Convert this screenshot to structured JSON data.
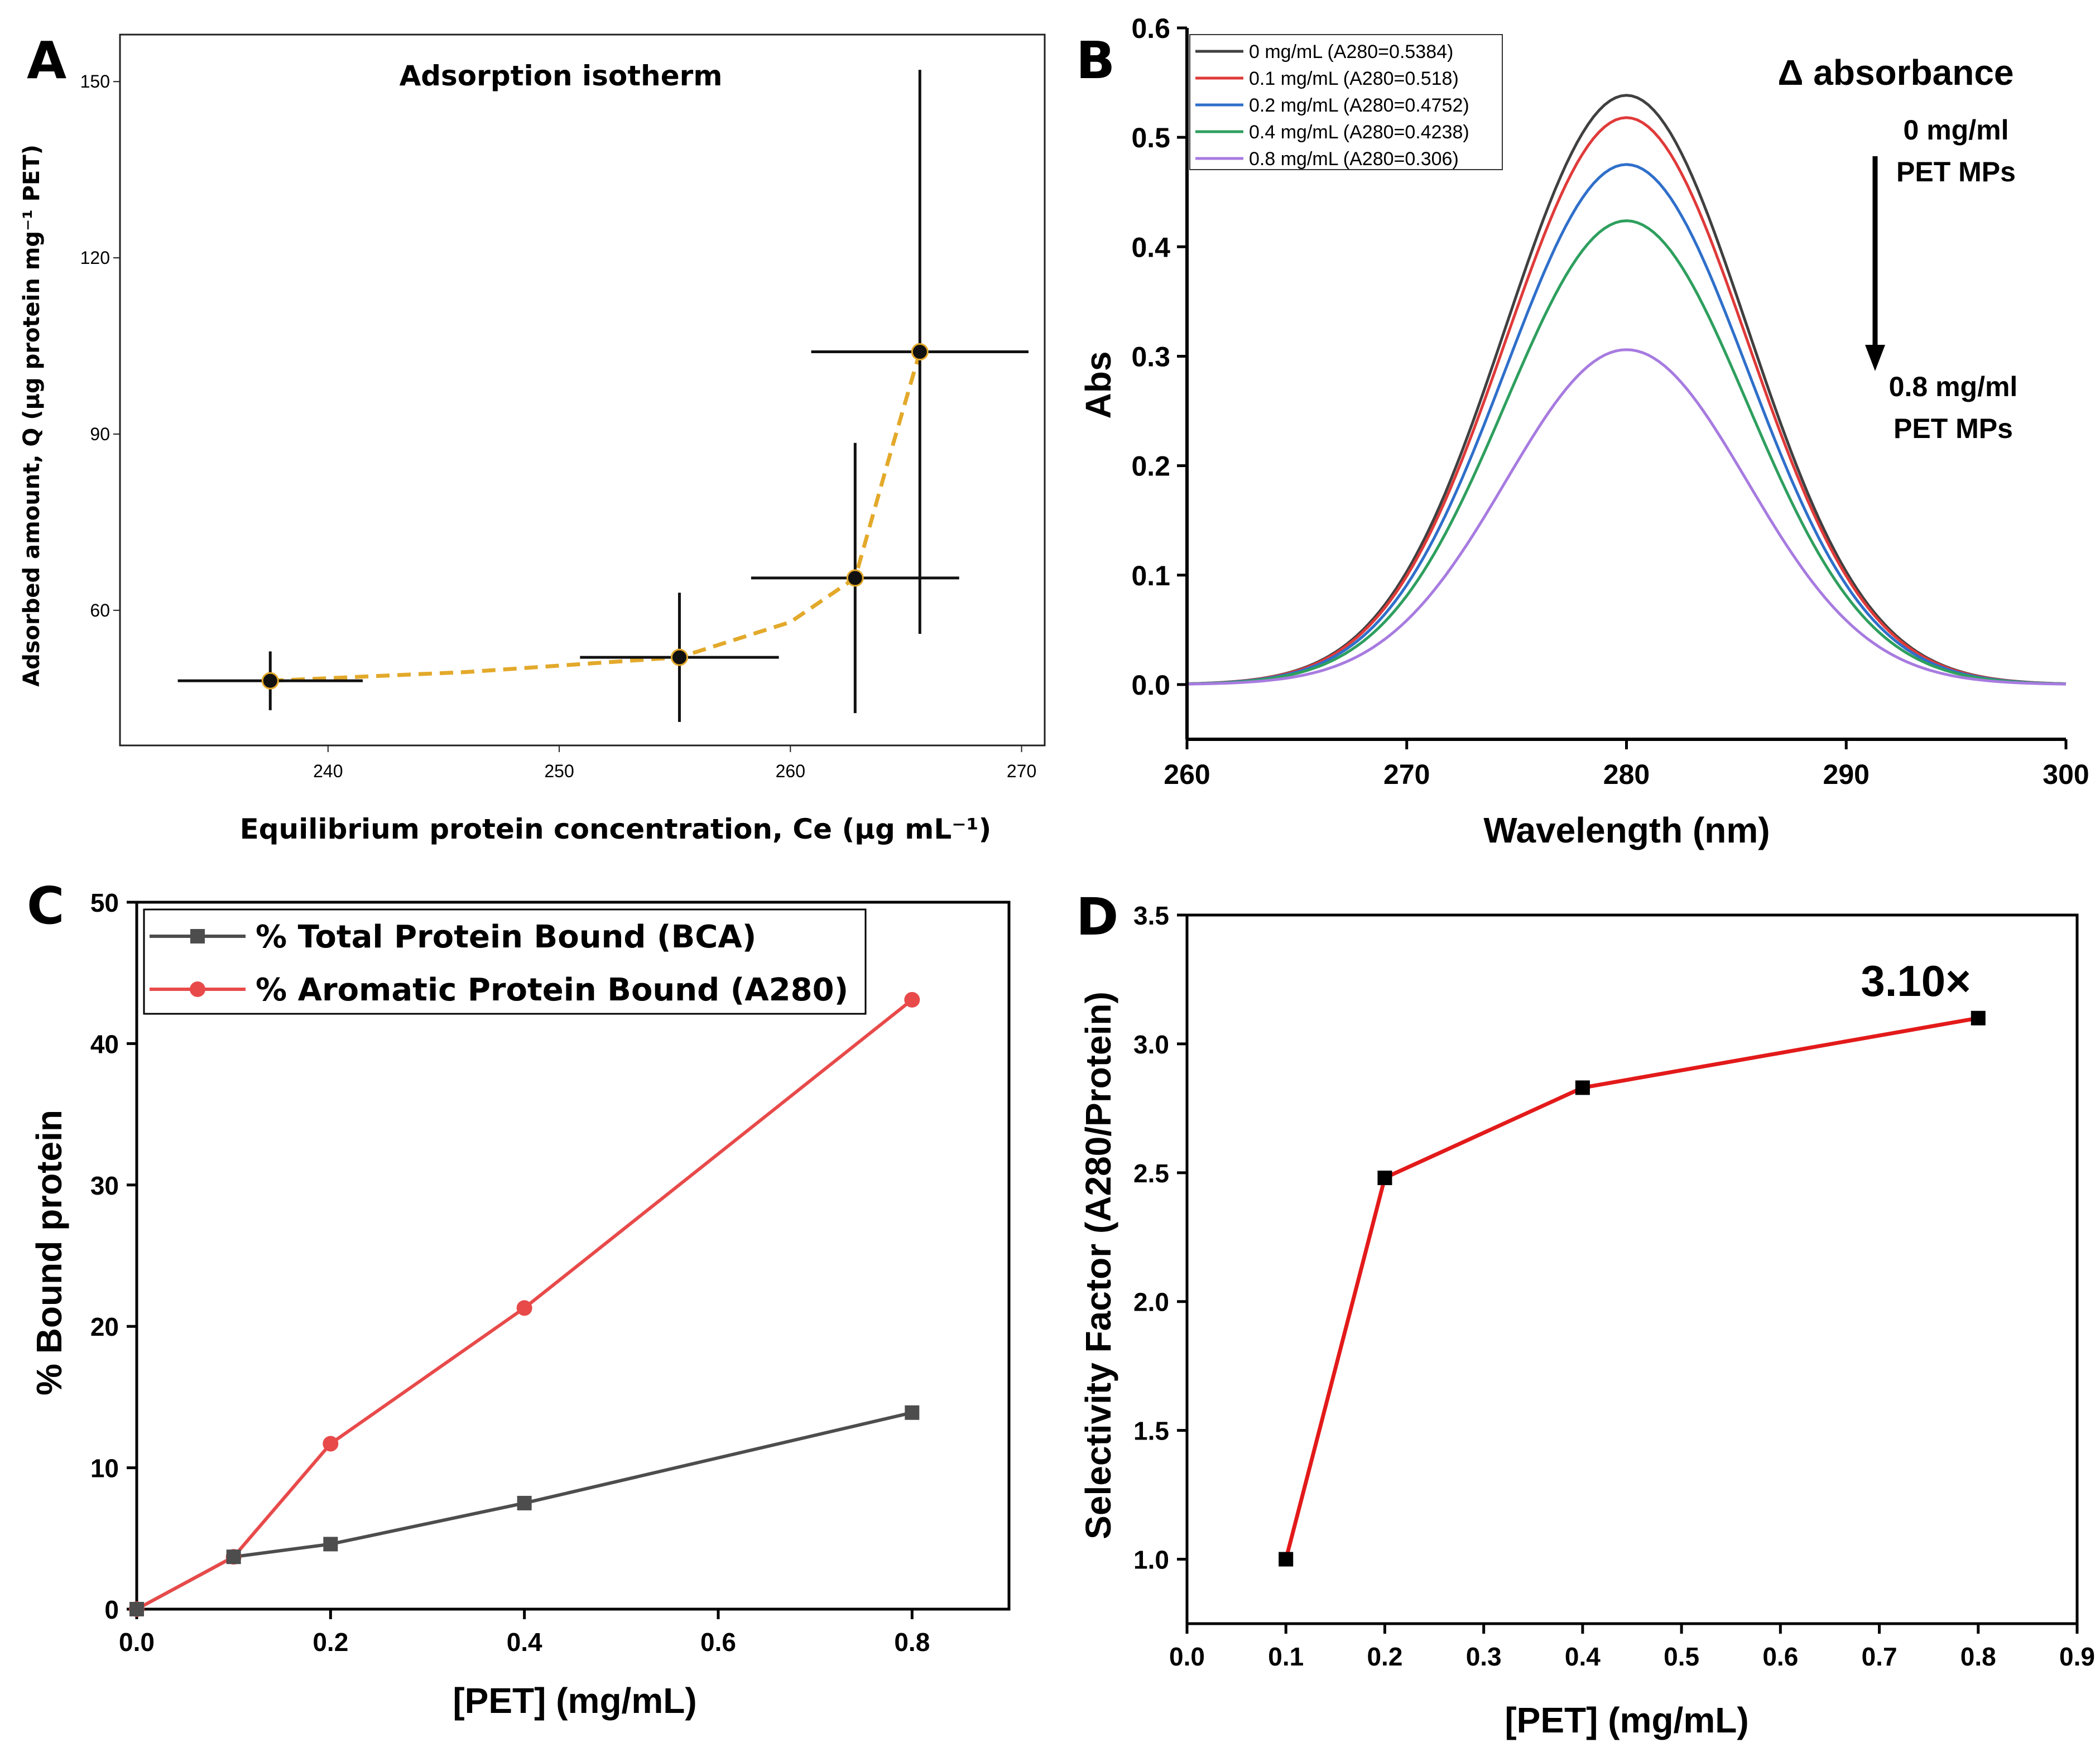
{
  "panels": {
    "a": "A",
    "b": "B",
    "c": "C",
    "d": "D"
  },
  "chart_data": [
    {
      "id": "A",
      "type": "scatter",
      "title": "Adsorption isotherm",
      "xlabel": "Equilibrium protein concentration, Ce (μg mL⁻¹)",
      "ylabel": "Adsorbed amount, Q (μg protein mg⁻¹ PET)",
      "xlim": [
        231,
        271
      ],
      "ylim": [
        37,
        158
      ],
      "xticks": [
        240,
        250,
        260,
        270
      ],
      "yticks": [
        60,
        90,
        120,
        150
      ],
      "line_color": "#e3a92a",
      "points": [
        {
          "x": 237.5,
          "y": 48.0,
          "xerr": 4.0,
          "yerr": 5.0
        },
        {
          "x": 255.2,
          "y": 52.0,
          "xerr": 4.3,
          "yerr": 11.0
        },
        {
          "x": 262.8,
          "y": 65.5,
          "xerr": 4.5,
          "yerr": 23.0
        },
        {
          "x": 265.6,
          "y": 104.0,
          "xerr": 4.7,
          "yerr": 48.0
        }
      ],
      "fit_line": [
        {
          "x": 237.5,
          "y": 48.0
        },
        {
          "x": 246.0,
          "y": 49.5
        },
        {
          "x": 255.2,
          "y": 52.0
        },
        {
          "x": 260.0,
          "y": 58.0
        },
        {
          "x": 262.8,
          "y": 65.5
        },
        {
          "x": 264.2,
          "y": 85.0
        },
        {
          "x": 265.6,
          "y": 104.0
        }
      ]
    },
    {
      "id": "B",
      "type": "line",
      "annotation_title": "Δ absorbance",
      "annotation_top": [
        "0 mg/ml",
        "PET MPs"
      ],
      "annotation_bottom": [
        "0.8 mg/ml",
        "PET MPs"
      ],
      "xlabel": "Wavelength (nm)",
      "ylabel": "Abs",
      "xlim": [
        260,
        300
      ],
      "ylim": [
        -0.05,
        0.6
      ],
      "xticks": [
        260,
        270,
        280,
        290,
        300
      ],
      "yticks": [
        0.0,
        0.1,
        0.2,
        0.3,
        0.4,
        0.5,
        0.6
      ],
      "ytick_labels": [
        "0.0",
        "0.1",
        "0.2",
        "0.3",
        "0.4",
        "0.5",
        "0.6"
      ],
      "peak_center_nm": 280,
      "peak_sigma_nm": 5.5,
      "series": [
        {
          "name": "0 mg/mL (A280=0.5384)",
          "peak": 0.5384,
          "color": "#404040"
        },
        {
          "name": "0.1 mg/mL (A280=0.518)",
          "peak": 0.518,
          "color": "#e03a3a"
        },
        {
          "name": "0.2 mg/mL (A280=0.4752)",
          "peak": 0.4752,
          "color": "#2f6fca"
        },
        {
          "name": "0.4 mg/mL (A280=0.4238)",
          "peak": 0.4238,
          "color": "#2e9f5e"
        },
        {
          "name": "0.8 mg/mL (A280=0.306)",
          "peak": 0.306,
          "color": "#a77be0"
        }
      ]
    },
    {
      "id": "C",
      "type": "line",
      "xlabel": "[PET] (mg/mL)",
      "ylabel": "% Bound protein",
      "xlim": [
        0,
        0.9
      ],
      "ylim": [
        0,
        50
      ],
      "xticks": [
        0.0,
        0.2,
        0.4,
        0.6,
        0.8
      ],
      "xtick_labels": [
        "0.0",
        "0.2",
        "0.4",
        "0.6",
        "0.8"
      ],
      "yticks": [
        0,
        10,
        20,
        30,
        40,
        50
      ],
      "ytick_labels": [
        "0",
        "10",
        "20",
        "30",
        "40",
        "50"
      ],
      "x": [
        0.0,
        0.1,
        0.2,
        0.4,
        0.8
      ],
      "series": [
        {
          "name": "% Total Protein Bound (BCA)",
          "values": [
            0.0,
            3.7,
            4.6,
            7.5,
            13.9
          ],
          "color": "#4d4d4d",
          "marker": "square"
        },
        {
          "name": "% Aromatic Protein Bound (A280)",
          "values": [
            0.0,
            3.7,
            11.7,
            21.3,
            43.1
          ],
          "color": "#e84a4a",
          "marker": "circle"
        }
      ]
    },
    {
      "id": "D",
      "type": "line",
      "xlabel": "[PET] (mg/mL)",
      "ylabel": "Selectivity Factor (A280/Protein)",
      "xlim": [
        0.0,
        0.9
      ],
      "ylim": [
        0.75,
        3.5
      ],
      "xticks": [
        0.0,
        0.1,
        0.2,
        0.3,
        0.4,
        0.5,
        0.6,
        0.7,
        0.8,
        0.9
      ],
      "xtick_labels": [
        "0.0",
        "0.1",
        "0.2",
        "0.3",
        "0.4",
        "0.5",
        "0.6",
        "0.7",
        "0.8",
        "0.9"
      ],
      "yticks": [
        1.0,
        1.5,
        2.0,
        2.5,
        3.0,
        3.5
      ],
      "ytick_labels": [
        "1.0",
        "1.5",
        "2.0",
        "2.5",
        "3.0",
        "3.5"
      ],
      "x": [
        0.1,
        0.2,
        0.4,
        0.8
      ],
      "values": [
        1.0,
        2.48,
        2.83,
        3.1
      ],
      "line_color": "#e31a1a",
      "annotation": "3.10×"
    }
  ]
}
